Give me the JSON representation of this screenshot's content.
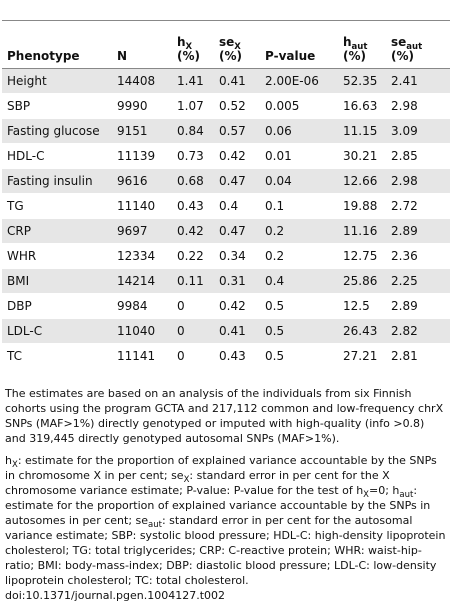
{
  "table": {
    "header": [
      [
        {
          "text": "Phenotype"
        }
      ],
      [
        {
          "text": "N"
        }
      ],
      [
        {
          "text": "h"
        },
        {
          "sub": "X"
        },
        {
          "text": " (%)"
        }
      ],
      [
        {
          "text": "se"
        },
        {
          "sub": "X"
        },
        {
          "text": " (%)"
        }
      ],
      [
        {
          "text": "P-value"
        }
      ],
      [
        {
          "text": "h"
        },
        {
          "sub": "aut"
        },
        {
          "text": " (%)"
        }
      ],
      [
        {
          "text": "se"
        },
        {
          "sub": "aut"
        },
        {
          "text": " (%)"
        }
      ]
    ],
    "rows": [
      [
        "Height",
        "14408",
        "1.41",
        "0.41",
        "2.00E-06",
        "52.35",
        "2.41"
      ],
      [
        "SBP",
        "9990",
        "1.07",
        "0.52",
        "0.005",
        "16.63",
        "2.98"
      ],
      [
        "Fasting glucose",
        "9151",
        "0.84",
        "0.57",
        "0.06",
        "11.15",
        "3.09"
      ],
      [
        "HDL-C",
        "11139",
        "0.73",
        "0.42",
        "0.01",
        "30.21",
        "2.85"
      ],
      [
        "Fasting insulin",
        "9616",
        "0.68",
        "0.47",
        "0.04",
        "12.66",
        "2.98"
      ],
      [
        "TG",
        "11140",
        "0.43",
        "0.4",
        "0.1",
        "19.88",
        "2.72"
      ],
      [
        "CRP",
        "9697",
        "0.42",
        "0.47",
        "0.2",
        "11.16",
        "2.89"
      ],
      [
        "WHR",
        "12334",
        "0.22",
        "0.34",
        "0.2",
        "12.75",
        "2.36"
      ],
      [
        "BMI",
        "14214",
        "0.11",
        "0.31",
        "0.4",
        "25.86",
        "2.25"
      ],
      [
        "DBP",
        "9984",
        "0",
        "0.42",
        "0.5",
        "12.5",
        "2.89"
      ],
      [
        "LDL-C",
        "11040",
        "0",
        "0.41",
        "0.5",
        "26.43",
        "2.82"
      ],
      [
        "TC",
        "11141",
        "0",
        "0.43",
        "0.5",
        "27.21",
        "2.81"
      ]
    ]
  },
  "footnotes": [
    [
      {
        "text": "The estimates are based on an analysis of the individuals from six Finnish cohorts using the program GCTA and 217,112 common and low-frequency chrX SNPs (MAF>1%) directly genotyped or imputed with high-quality (info >0.8) and 319,445 directly genotyped autosomal SNPs (MAF>1%)."
      }
    ],
    [
      {
        "text": "h"
      },
      {
        "sub": "X"
      },
      {
        "text": ": estimate for the proportion of explained variance accountable by the SNPs in chromosome X in per cent; se"
      },
      {
        "sub": "X"
      },
      {
        "text": ": standard error in per cent for the X chromosome variance estimate; P-value: P-value for the test of h"
      },
      {
        "sub": "X"
      },
      {
        "text": "=0; h"
      },
      {
        "sub": "aut"
      },
      {
        "text": ": estimate for the proportion of explained variance accountable by the SNPs in autosomes in per cent; se"
      },
      {
        "sub": "aut"
      },
      {
        "text": ": standard error in per cent for the autosomal variance estimate; SBP: systolic blood pressure; HDL-C: high-density lipoprotein cholesterol; TG: total triglycerides; CRP: C-reactive protein; WHR: waist-hip-ratio; BMI: body-mass-index; DBP: diastolic blood pressure; LDL-C: low-density lipoprotein cholesterol; TC: total cholesterol."
      }
    ],
    [
      {
        "text": "doi:10.1371/journal.pgen.1004127.t002"
      }
    ]
  ]
}
